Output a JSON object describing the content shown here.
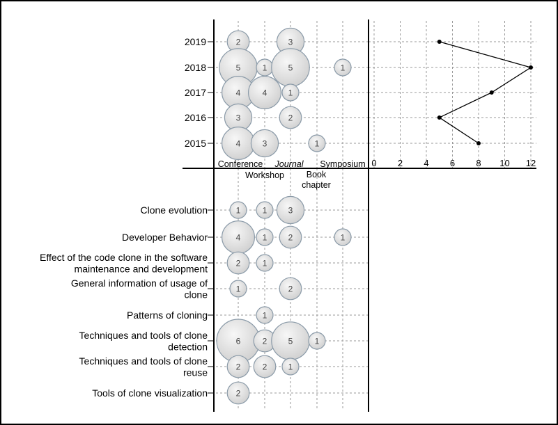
{
  "chart_data": {
    "type": "scatter",
    "venues": [
      "Conference",
      "Workshop",
      "Journal",
      "Book chapter",
      "Symposium"
    ],
    "years": [
      "2019",
      "2018",
      "2017",
      "2016",
      "2015"
    ],
    "year_bubbles": [
      {
        "year": "2019",
        "venue": "Conference",
        "value": 2
      },
      {
        "year": "2019",
        "venue": "Journal",
        "value": 3
      },
      {
        "year": "2018",
        "venue": "Conference",
        "value": 5
      },
      {
        "year": "2018",
        "venue": "Workshop",
        "value": 1
      },
      {
        "year": "2018",
        "venue": "Journal",
        "value": 5
      },
      {
        "year": "2018",
        "venue": "Symposium",
        "value": 1
      },
      {
        "year": "2017",
        "venue": "Conference",
        "value": 4
      },
      {
        "year": "2017",
        "venue": "Workshop",
        "value": 4
      },
      {
        "year": "2017",
        "venue": "Journal",
        "value": 1
      },
      {
        "year": "2016",
        "venue": "Conference",
        "value": 3
      },
      {
        "year": "2016",
        "venue": "Journal",
        "value": 2
      },
      {
        "year": "2015",
        "venue": "Conference",
        "value": 4
      },
      {
        "year": "2015",
        "venue": "Workshop",
        "value": 3
      },
      {
        "year": "2015",
        "venue": "Book chapter",
        "value": 1
      }
    ],
    "year_totals": {
      "x_ticks": [
        "0",
        "2",
        "4",
        "6",
        "8",
        "10",
        "12"
      ],
      "xlim": [
        0,
        12
      ],
      "points": [
        {
          "year": "2019",
          "value": 5
        },
        {
          "year": "2018",
          "value": 12
        },
        {
          "year": "2017",
          "value": 9
        },
        {
          "year": "2016",
          "value": 5
        },
        {
          "year": "2015",
          "value": 8
        }
      ]
    },
    "topics": [
      "Clone evolution",
      "Developer Behavior",
      "Effect of the code clone in the software maintenance and development",
      "General information of usage of clone",
      "Patterns of cloning",
      "Techniques and tools of clone detection",
      "Techniques and tools of clone reuse",
      "Tools of clone visualization"
    ],
    "topic_bubbles": [
      {
        "topic": 0,
        "venue": "Conference",
        "value": 1
      },
      {
        "topic": 0,
        "venue": "Workshop",
        "value": 1
      },
      {
        "topic": 0,
        "venue": "Journal",
        "value": 3
      },
      {
        "topic": 1,
        "venue": "Conference",
        "value": 4
      },
      {
        "topic": 1,
        "venue": "Workshop",
        "value": 1
      },
      {
        "topic": 1,
        "venue": "Journal",
        "value": 2
      },
      {
        "topic": 1,
        "venue": "Symposium",
        "value": 1
      },
      {
        "topic": 2,
        "venue": "Conference",
        "value": 2
      },
      {
        "topic": 2,
        "venue": "Workshop",
        "value": 1
      },
      {
        "topic": 3,
        "venue": "Conference",
        "value": 1
      },
      {
        "topic": 3,
        "venue": "Journal",
        "value": 2
      },
      {
        "topic": 4,
        "venue": "Workshop",
        "value": 1
      },
      {
        "topic": 5,
        "venue": "Conference",
        "value": 6
      },
      {
        "topic": 5,
        "venue": "Workshop",
        "value": 2
      },
      {
        "topic": 5,
        "venue": "Journal",
        "value": 5
      },
      {
        "topic": 5,
        "venue": "Book chapter",
        "value": 1
      },
      {
        "topic": 6,
        "venue": "Conference",
        "value": 2
      },
      {
        "topic": 6,
        "venue": "Workshop",
        "value": 2
      },
      {
        "topic": 6,
        "venue": "Journal",
        "value": 1
      },
      {
        "topic": 7,
        "venue": "Conference",
        "value": 2
      }
    ],
    "colors": {
      "bubble_fill": "#d9d9d9",
      "bubble_stroke": "#8a9aa8",
      "grid": "#999999",
      "axis": "#000000",
      "line": "#000000"
    }
  }
}
